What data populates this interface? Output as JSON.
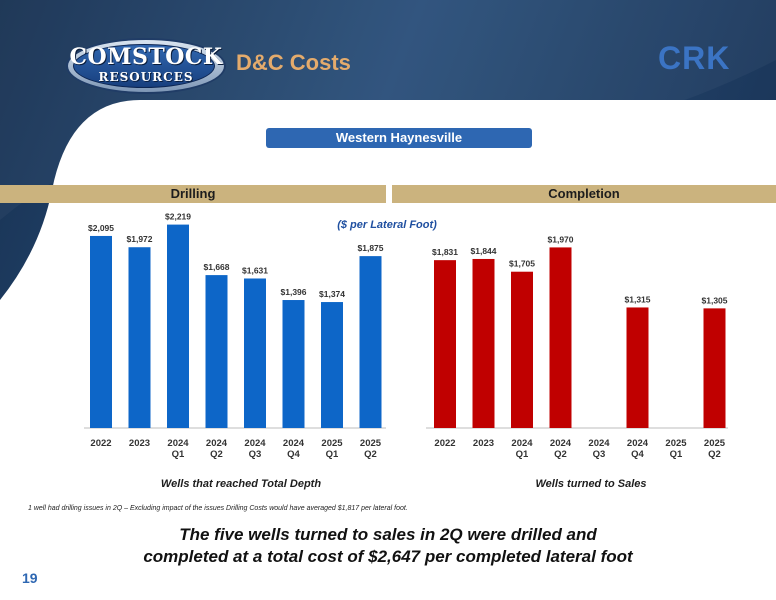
{
  "header": {
    "logo_line1": "COMSTOCK",
    "logo_line2": "RESOURCES",
    "title": "D&C Costs",
    "brand_mark": "CRK"
  },
  "region_label": "Western Haynesville",
  "unit_note": "($ per Lateral Foot)",
  "footnote": "1 well had drilling issues in 2Q – Excluding impact of the issues Drilling Costs would have averaged $1,817 per lateral foot.",
  "conclusion": [
    "The five wells turned to sales in 2Q were drilled and",
    "completed at a total cost of $2,647 per completed lateral foot"
  ],
  "page_number": "19",
  "colors": {
    "drilling": "#0d66c8",
    "completion": "#c00000",
    "band": "#cbb37e",
    "title": "#e4ab6c",
    "accent": "#2e67b2"
  },
  "chart_data": [
    {
      "type": "bar",
      "title": "Drilling",
      "xlabel": "Wells that reached Total Depth",
      "ylabel": "($ per Lateral Foot)",
      "categories": [
        [
          "2022"
        ],
        [
          "2023"
        ],
        [
          "2024",
          "Q1"
        ],
        [
          "2024",
          "Q2"
        ],
        [
          "2024",
          "Q3"
        ],
        [
          "2024",
          "Q4"
        ],
        [
          "2025",
          "Q1"
        ],
        [
          "2025",
          "Q2"
        ]
      ],
      "values": [
        2095,
        1972,
        2219,
        1668,
        1631,
        1396,
        1374,
        1875
      ],
      "data_labels": [
        "$2,095",
        "$1,972",
        "$2,219",
        "$1,668",
        "$1,631",
        "$1,396",
        "$1,374",
        "$1,875"
      ],
      "color": "#0d66c8",
      "ylim": [
        0,
        2400
      ]
    },
    {
      "type": "bar",
      "title": "Completion",
      "xlabel": "Wells turned to Sales",
      "categories": [
        [
          "2022"
        ],
        [
          "2023"
        ],
        [
          "2024",
          "Q1"
        ],
        [
          "2024",
          "Q2"
        ],
        [
          "2024",
          "Q3"
        ],
        [
          "2024",
          "Q4"
        ],
        [
          "2025",
          "Q1"
        ],
        [
          "2025",
          "Q2"
        ]
      ],
      "values": [
        1831,
        1844,
        1705,
        1970,
        null,
        1315,
        null,
        1305
      ],
      "data_labels": [
        "$1,831",
        "$1,844",
        "$1,705",
        "$1,970",
        "",
        "$1,315",
        "",
        "$1,305"
      ],
      "color": "#c00000",
      "ylim": [
        0,
        2400
      ]
    }
  ]
}
